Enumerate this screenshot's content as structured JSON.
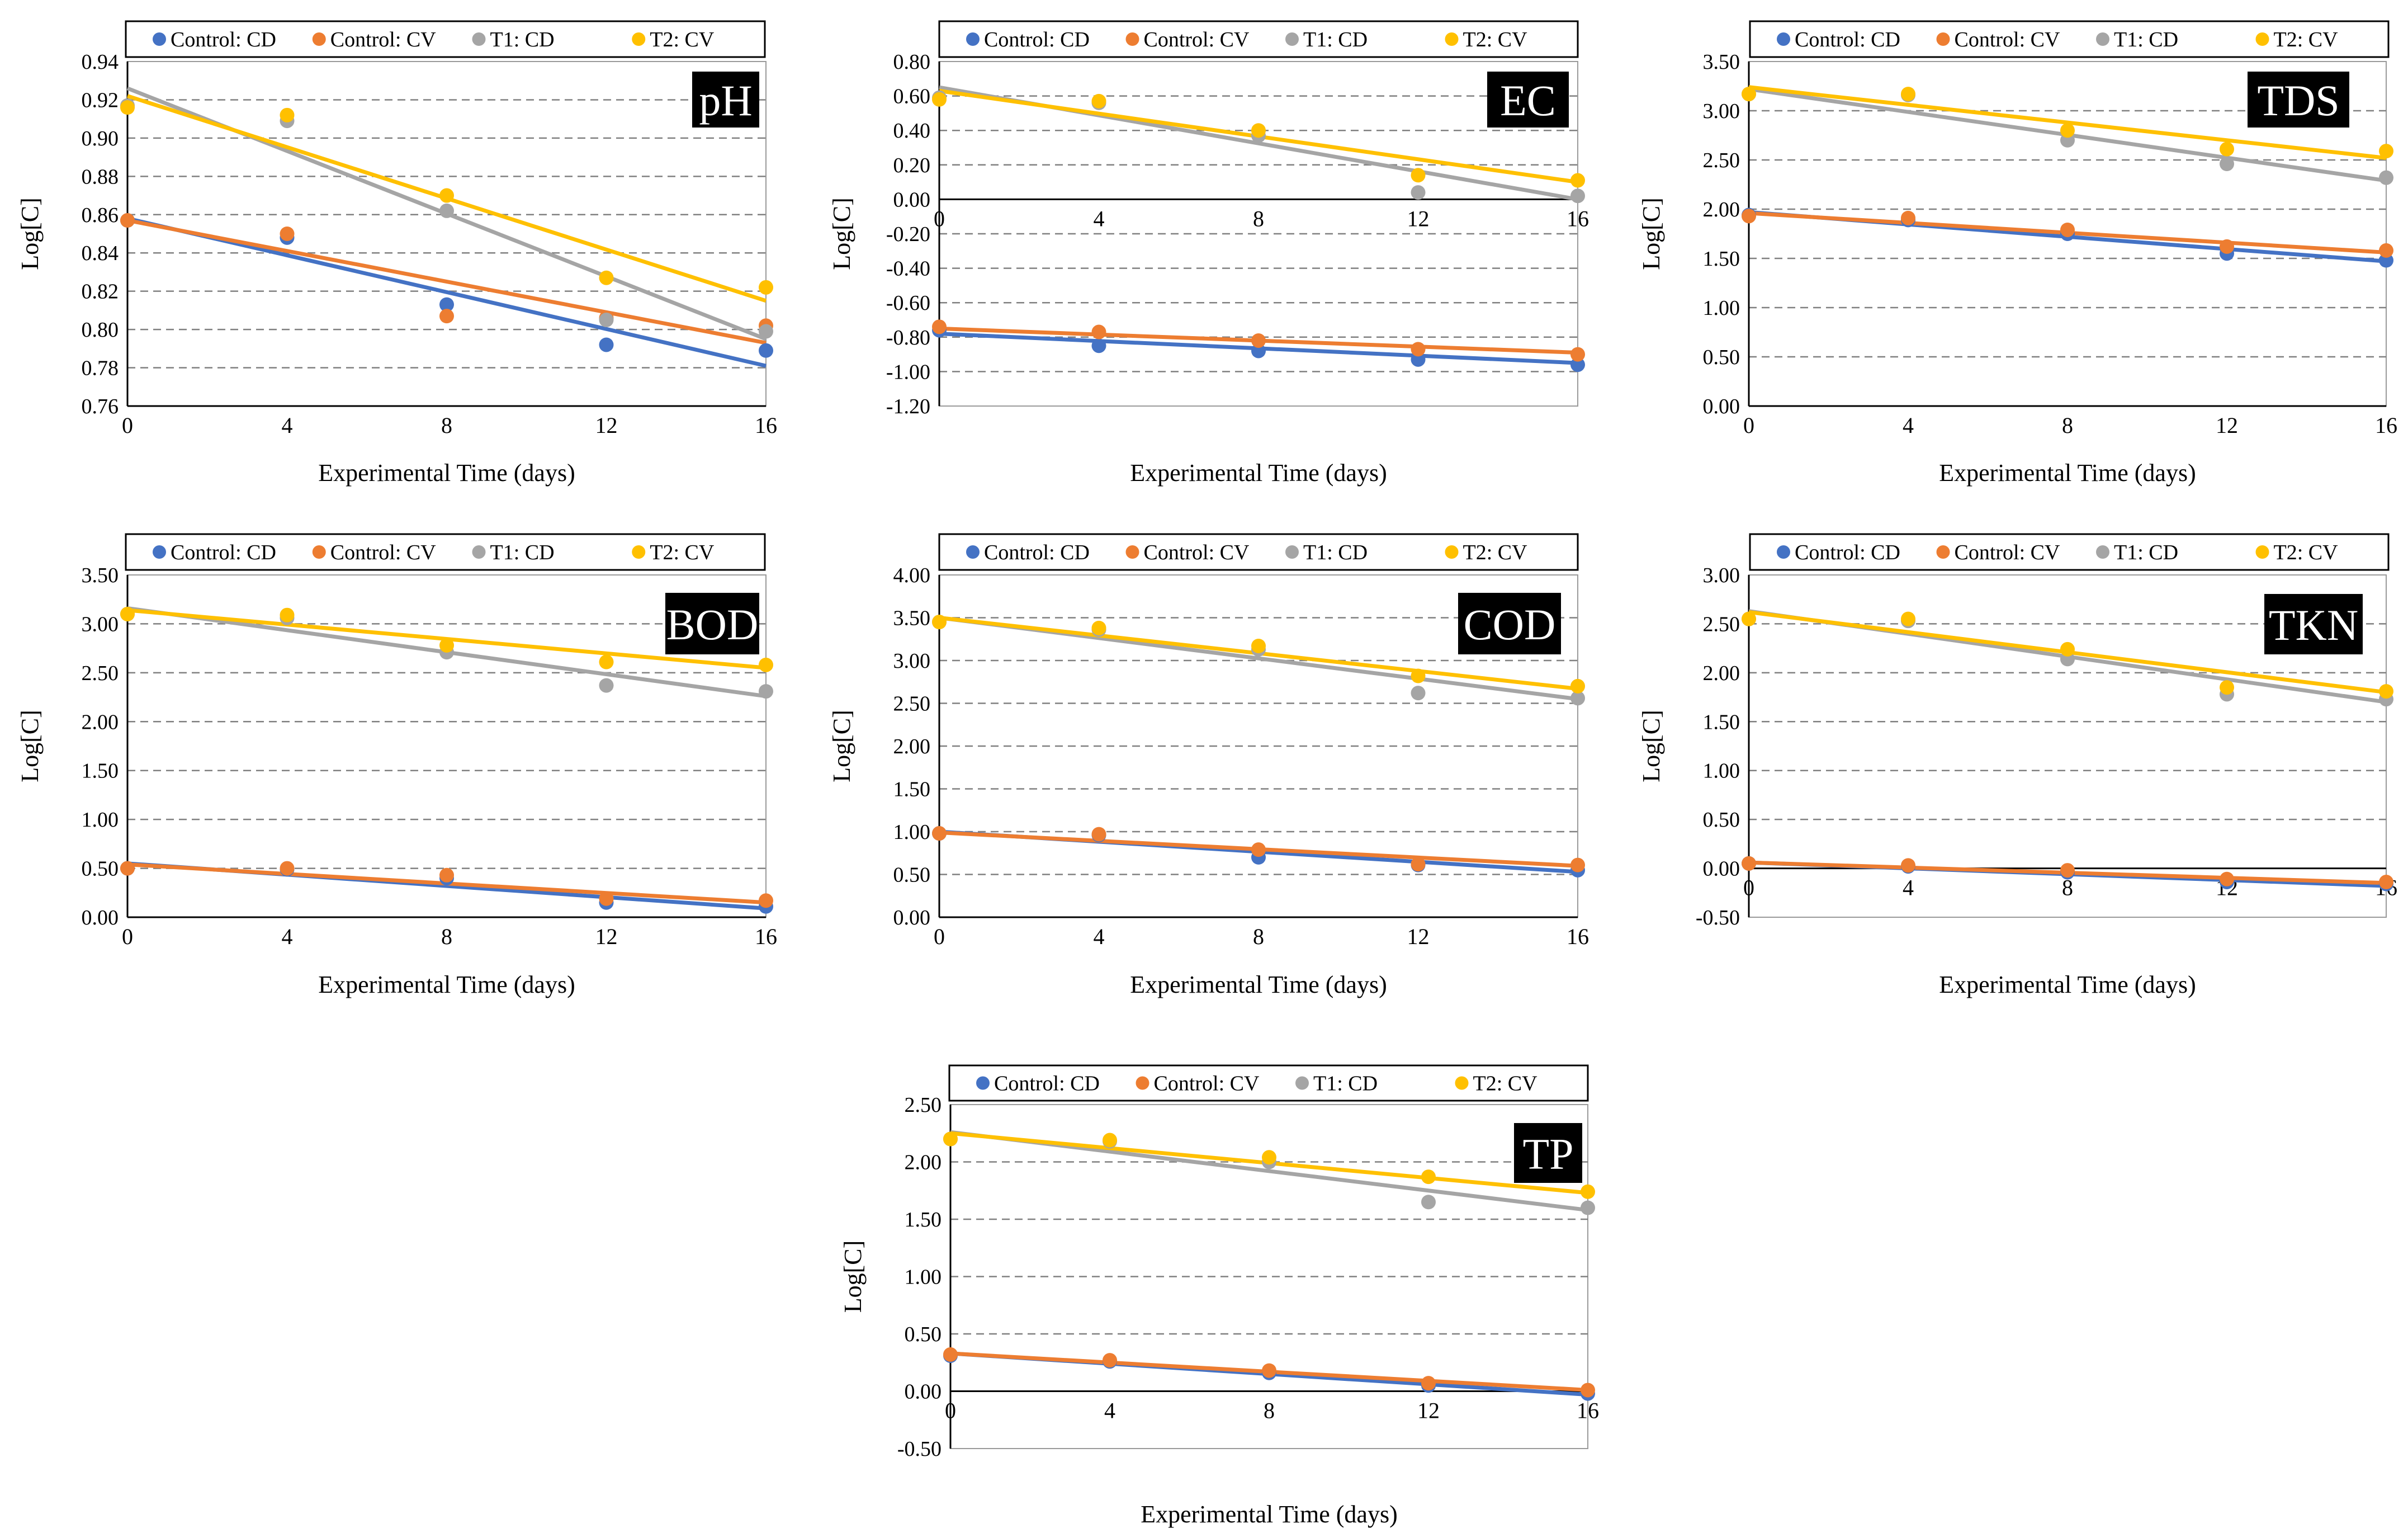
{
  "colors": {
    "control_cd": "#4472C4",
    "control_cv": "#ED7D31",
    "t1_cd": "#A5A5A5",
    "t2_cv": "#FFC000",
    "grid": "#808080",
    "axis": "#000000",
    "tag_bg": "#000000",
    "tag_text": "#ffffff"
  },
  "chart_data": [
    {
      "type": "scatter",
      "tag": "pH",
      "xlabel": "Experimental Time (days)",
      "ylabel": "Log[C]",
      "ylim": [
        0.76,
        0.94
      ],
      "ystep": 0.02,
      "ydecimals": 2,
      "xlim": [
        0,
        16
      ],
      "xticks": [
        "0",
        "4",
        "8",
        "12",
        "16"
      ],
      "grid": true,
      "legend": "top",
      "series": [
        {
          "name": "Control: CD",
          "color_key": "control_cd",
          "x": [
            0,
            4,
            8,
            12,
            16
          ],
          "values": [
            0.857,
            0.848,
            0.813,
            0.792,
            0.789
          ],
          "trend": [
            0.858,
            0.781
          ]
        },
        {
          "name": "Control: CV",
          "color_key": "control_cv",
          "x": [
            0,
            4,
            8,
            12,
            16
          ],
          "values": [
            0.857,
            0.85,
            0.807,
            0.806,
            0.802
          ],
          "trend": [
            0.857,
            0.793
          ]
        },
        {
          "name": "T1: CD",
          "color_key": "t1_cd",
          "x": [
            0,
            4,
            8,
            12,
            16
          ],
          "values": [
            0.917,
            0.909,
            0.862,
            0.805,
            0.799
          ],
          "trend": [
            0.926,
            0.795
          ]
        },
        {
          "name": "T2: CV",
          "color_key": "t2_cv",
          "x": [
            0,
            4,
            8,
            12,
            16
          ],
          "values": [
            0.916,
            0.912,
            0.87,
            0.827,
            0.822
          ],
          "trend": [
            0.922,
            0.815
          ]
        }
      ]
    },
    {
      "type": "scatter",
      "tag": "EC",
      "xlabel": "Experimental Time (days)",
      "ylabel": "Log[C]",
      "ylim": [
        -1.2,
        0.8
      ],
      "ystep": 0.2,
      "ydecimals": 2,
      "xlim": [
        0,
        16
      ],
      "xticks": [
        "0",
        "4",
        "8",
        "12",
        "16"
      ],
      "xaxis_at_zero": true,
      "grid": true,
      "legend": "top",
      "series": [
        {
          "name": "Control: CD",
          "color_key": "control_cd",
          "x": [
            0,
            4,
            8,
            12,
            16
          ],
          "values": [
            -0.76,
            -0.85,
            -0.88,
            -0.93,
            -0.96
          ],
          "trend": [
            -0.78,
            -0.95
          ]
        },
        {
          "name": "Control: CV",
          "color_key": "control_cv",
          "x": [
            0,
            4,
            8,
            12,
            16
          ],
          "values": [
            -0.74,
            -0.77,
            -0.82,
            -0.87,
            -0.9
          ],
          "trend": [
            -0.75,
            -0.89
          ]
        },
        {
          "name": "T1: CD",
          "color_key": "t1_cd",
          "x": [
            0,
            4,
            8,
            12,
            16
          ],
          "values": [
            0.59,
            0.56,
            0.37,
            0.04,
            0.02
          ],
          "trend": [
            0.65,
            0.0
          ]
        },
        {
          "name": "T2: CV",
          "color_key": "t2_cv",
          "x": [
            0,
            4,
            8,
            12,
            16
          ],
          "values": [
            0.58,
            0.57,
            0.4,
            0.14,
            0.11
          ],
          "trend": [
            0.63,
            0.1
          ]
        }
      ]
    },
    {
      "type": "scatter",
      "tag": "TDS",
      "xlabel": "Experimental Time (days)",
      "ylabel": "Log[C]",
      "ylim": [
        0,
        3.5
      ],
      "ystep": 0.5,
      "ydecimals": 2,
      "xlim": [
        0,
        16
      ],
      "xticks": [
        "0",
        "4",
        "8",
        "12",
        "16"
      ],
      "grid": true,
      "legend": "top",
      "series": [
        {
          "name": "Control: CD",
          "color_key": "control_cd",
          "x": [
            0,
            4,
            8,
            12,
            16
          ],
          "values": [
            1.94,
            1.89,
            1.75,
            1.55,
            1.48
          ],
          "trend": [
            1.97,
            1.47
          ]
        },
        {
          "name": "Control: CV",
          "color_key": "control_cv",
          "x": [
            0,
            4,
            8,
            12,
            16
          ],
          "values": [
            1.93,
            1.91,
            1.79,
            1.62,
            1.58
          ],
          "trend": [
            1.96,
            1.56
          ]
        },
        {
          "name": "T1: CD",
          "color_key": "t1_cd",
          "x": [
            0,
            4,
            8,
            12,
            16
          ],
          "values": [
            3.17,
            3.16,
            2.7,
            2.46,
            2.32
          ],
          "trend": [
            3.22,
            2.29
          ]
        },
        {
          "name": "T2: CV",
          "color_key": "t2_cv",
          "x": [
            0,
            4,
            8,
            12,
            16
          ],
          "values": [
            3.17,
            3.17,
            2.8,
            2.61,
            2.59
          ],
          "trend": [
            3.24,
            2.52
          ]
        }
      ]
    },
    {
      "type": "scatter",
      "tag": "BOD",
      "xlabel": "Experimental Time (days)",
      "ylabel": "Log[C]",
      "ylim": [
        0,
        3.5
      ],
      "ystep": 0.5,
      "ydecimals": 2,
      "xlim": [
        0,
        16
      ],
      "xticks": [
        "0",
        "4",
        "8",
        "12",
        "16"
      ],
      "grid": true,
      "legend": "top",
      "series": [
        {
          "name": "Control: CD",
          "color_key": "control_cd",
          "x": [
            0,
            4,
            8,
            12,
            16
          ],
          "values": [
            0.5,
            0.49,
            0.4,
            0.15,
            0.11
          ],
          "trend": [
            0.55,
            0.09
          ]
        },
        {
          "name": "Control: CV",
          "color_key": "control_cv",
          "x": [
            0,
            4,
            8,
            12,
            16
          ],
          "values": [
            0.5,
            0.5,
            0.43,
            0.19,
            0.17
          ],
          "trend": [
            0.54,
            0.15
          ]
        },
        {
          "name": "T1: CD",
          "color_key": "t1_cd",
          "x": [
            0,
            4,
            8,
            12,
            16
          ],
          "values": [
            3.1,
            3.06,
            2.71,
            2.37,
            2.31
          ],
          "trend": [
            3.16,
            2.26
          ]
        },
        {
          "name": "T2: CV",
          "color_key": "t2_cv",
          "x": [
            0,
            4,
            8,
            12,
            16
          ],
          "values": [
            3.1,
            3.09,
            2.78,
            2.61,
            2.58
          ],
          "trend": [
            3.14,
            2.55
          ]
        }
      ]
    },
    {
      "type": "scatter",
      "tag": "COD",
      "xlabel": "Experimental Time (days)",
      "ylabel": "Log[C]",
      "ylim": [
        0,
        4
      ],
      "ystep": 0.5,
      "ydecimals": 2,
      "xlim": [
        0,
        16
      ],
      "xticks": [
        "0",
        "4",
        "8",
        "12",
        "16"
      ],
      "grid": true,
      "legend": "top",
      "series": [
        {
          "name": "Control: CD",
          "color_key": "control_cd",
          "x": [
            0,
            4,
            8,
            12,
            16
          ],
          "values": [
            0.98,
            0.96,
            0.7,
            0.61,
            0.55
          ],
          "trend": [
            1.0,
            0.53
          ]
        },
        {
          "name": "Control: CV",
          "color_key": "control_cv",
          "x": [
            0,
            4,
            8,
            12,
            16
          ],
          "values": [
            0.98,
            0.97,
            0.79,
            0.62,
            0.61
          ],
          "trend": [
            0.99,
            0.6
          ]
        },
        {
          "name": "T1: CD",
          "color_key": "t1_cd",
          "x": [
            0,
            4,
            8,
            12,
            16
          ],
          "values": [
            3.45,
            3.36,
            3.13,
            2.62,
            2.56
          ],
          "trend": [
            3.5,
            2.55
          ]
        },
        {
          "name": "T2: CV",
          "color_key": "t2_cv",
          "x": [
            0,
            4,
            8,
            12,
            16
          ],
          "values": [
            3.45,
            3.38,
            3.17,
            2.82,
            2.7
          ],
          "trend": [
            3.5,
            2.67
          ]
        }
      ]
    },
    {
      "type": "scatter",
      "tag": "TKN",
      "xlabel": "Experimental Time (days)",
      "ylabel": "Log[C]",
      "ylim": [
        -0.5,
        3
      ],
      "ystep": 0.5,
      "ydecimals": 2,
      "xlim": [
        0,
        16
      ],
      "xticks": [
        "0",
        "4",
        "8",
        "12",
        "16"
      ],
      "xaxis_at_zero": true,
      "grid": true,
      "legend": "top",
      "series": [
        {
          "name": "Control: CD",
          "color_key": "control_cd",
          "x": [
            0,
            4,
            8,
            12,
            16
          ],
          "values": [
            0.05,
            0.02,
            -0.04,
            -0.14,
            -0.16
          ],
          "trend": [
            0.06,
            -0.18
          ]
        },
        {
          "name": "Control: CV",
          "color_key": "control_cv",
          "x": [
            0,
            4,
            8,
            12,
            16
          ],
          "values": [
            0.05,
            0.03,
            -0.02,
            -0.11,
            -0.14
          ],
          "trend": [
            0.06,
            -0.15
          ]
        },
        {
          "name": "T1: CD",
          "color_key": "t1_cd",
          "x": [
            0,
            4,
            8,
            12,
            16
          ],
          "values": [
            2.55,
            2.53,
            2.14,
            1.78,
            1.73
          ],
          "trend": [
            2.63,
            1.7
          ]
        },
        {
          "name": "T2: CV",
          "color_key": "t2_cv",
          "x": [
            0,
            4,
            8,
            12,
            16
          ],
          "values": [
            2.55,
            2.55,
            2.24,
            1.85,
            1.81
          ],
          "trend": [
            2.62,
            1.8
          ]
        }
      ]
    },
    {
      "type": "scatter",
      "tag": "TP",
      "xlabel": "Experimental Time (days)",
      "ylabel": "Log[C]",
      "ylim": [
        -0.5,
        2.5
      ],
      "ystep": 0.5,
      "ydecimals": 2,
      "xlim": [
        0,
        16
      ],
      "xticks": [
        "0",
        "4",
        "8",
        "12",
        "16"
      ],
      "xaxis_at_zero": true,
      "grid": true,
      "legend": "top",
      "series": [
        {
          "name": "Control: CD",
          "color_key": "control_cd",
          "x": [
            0,
            4,
            8,
            12,
            16
          ],
          "values": [
            0.31,
            0.26,
            0.16,
            0.05,
            -0.02
          ],
          "trend": [
            0.33,
            -0.03
          ]
        },
        {
          "name": "Control: CV",
          "color_key": "control_cv",
          "x": [
            0,
            4,
            8,
            12,
            16
          ],
          "values": [
            0.32,
            0.27,
            0.18,
            0.07,
            0.01
          ],
          "trend": [
            0.33,
            0.01
          ]
        },
        {
          "name": "T1: CD",
          "color_key": "t1_cd",
          "x": [
            0,
            4,
            8,
            12,
            16
          ],
          "values": [
            2.2,
            2.18,
            2.0,
            1.65,
            1.6
          ],
          "trend": [
            2.26,
            1.58
          ]
        },
        {
          "name": "T2: CV",
          "color_key": "t2_cv",
          "x": [
            0,
            4,
            8,
            12,
            16
          ],
          "values": [
            2.2,
            2.19,
            2.04,
            1.87,
            1.74
          ],
          "trend": [
            2.25,
            1.73
          ]
        }
      ]
    }
  ]
}
